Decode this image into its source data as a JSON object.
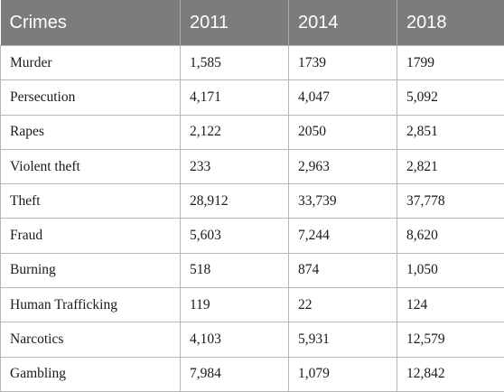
{
  "table": {
    "headers": [
      "Crimes",
      "2011",
      "2014",
      "2018"
    ],
    "rows": [
      [
        "Murder",
        "1,585",
        "1739",
        "1799"
      ],
      [
        "Persecution",
        "4,171",
        "4,047",
        "5,092"
      ],
      [
        "Rapes",
        "2,122",
        "2050",
        "2,851"
      ],
      [
        "Violent theft",
        "233",
        "2,963",
        "2,821"
      ],
      [
        "Theft",
        "28,912",
        "33,739",
        "37,778"
      ],
      [
        "Fraud",
        "5,603",
        "7,244",
        "8,620"
      ],
      [
        "Burning",
        "518",
        "874",
        "1,050"
      ],
      [
        "Human Trafficking",
        "119",
        "22",
        "124"
      ],
      [
        "Narcotics",
        "4,103",
        "5,931",
        "12,579"
      ],
      [
        "Gambling",
        "7,984",
        "1,079",
        "12,842"
      ]
    ]
  }
}
